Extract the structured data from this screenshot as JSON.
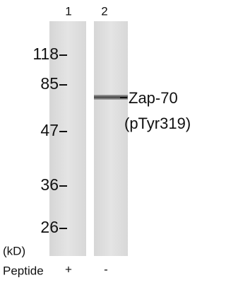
{
  "lanes": [
    {
      "number": "1",
      "peptide": "+"
    },
    {
      "number": "2",
      "peptide": "-"
    }
  ],
  "markers": [
    "118",
    "85",
    "47",
    "36",
    "26"
  ],
  "unit": "(kD)",
  "band_label": {
    "line1": "Zap-70",
    "line2": "(pTyr319)"
  },
  "peptide_label": "Peptide"
}
